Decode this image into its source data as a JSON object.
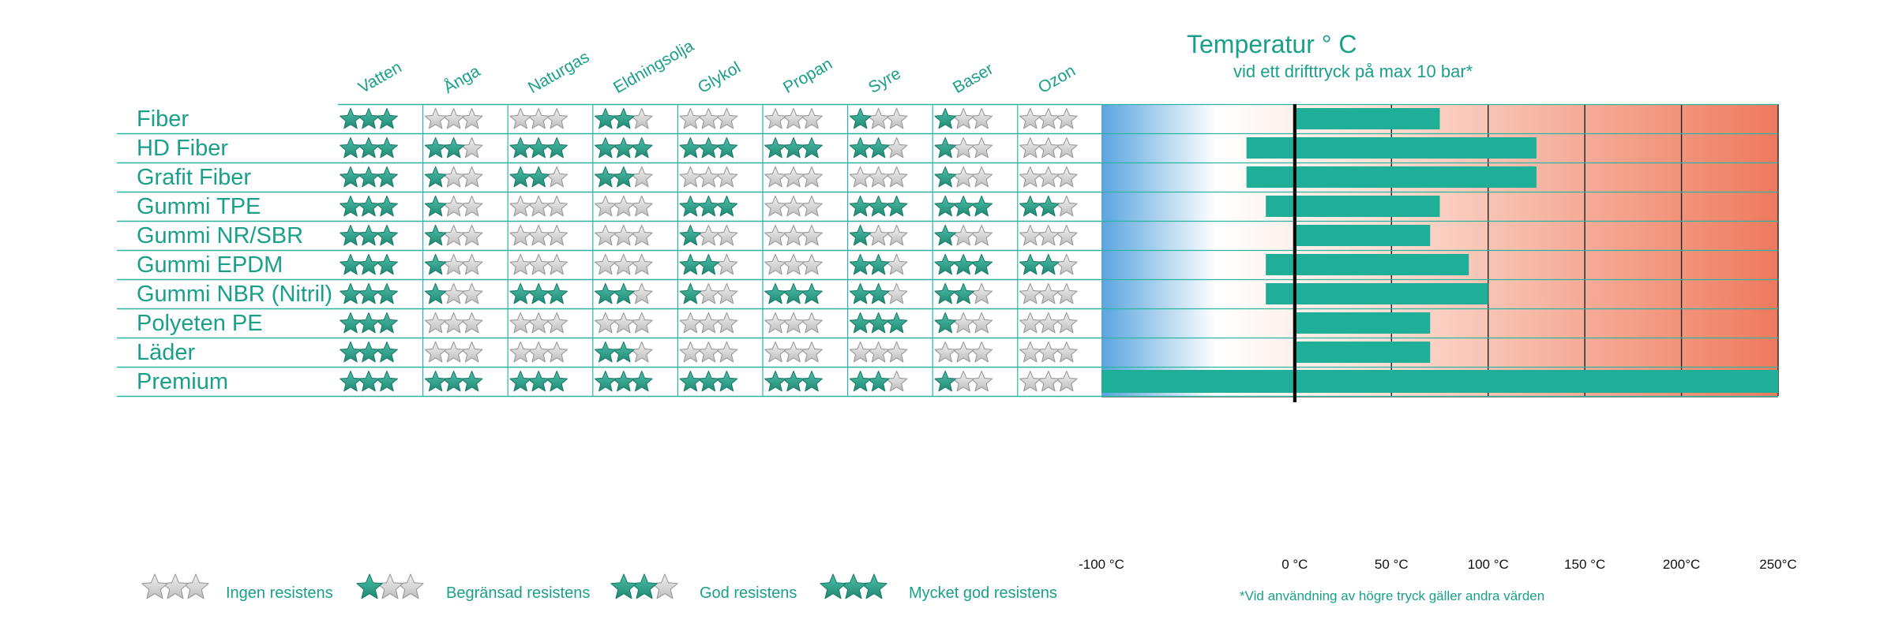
{
  "colors": {
    "teal": "#1fae97",
    "line": "#2bb5a0",
    "text": "#1aa08a",
    "star_filled": "#2a9e88",
    "star_empty": "#d6d6d6",
    "cold": "#5aa5df",
    "hot": "#ee7a5e"
  },
  "chemicals": [
    "Vatten",
    "Ånga",
    "Naturgas",
    "Eldningsolja",
    "Glykol",
    "Propan",
    "Syre",
    "Baser",
    "Ozon"
  ],
  "materials": [
    "Fiber",
    "HD Fiber",
    "Grafit Fiber",
    "Gummi TPE",
    "Gummi NR/SBR",
    "Gummi EPDM",
    "Gummi NBR (Nitril)",
    "Polyeten PE",
    "Läder",
    "Premium"
  ],
  "ratings": [
    [
      3,
      0,
      0,
      2,
      0,
      0,
      1,
      1,
      0
    ],
    [
      3,
      2,
      3,
      3,
      3,
      3,
      2,
      1,
      0
    ],
    [
      3,
      1,
      2,
      2,
      0,
      0,
      0,
      1,
      0
    ],
    [
      3,
      1,
      0,
      0,
      3,
      0,
      3,
      3,
      2
    ],
    [
      3,
      1,
      0,
      0,
      1,
      0,
      1,
      1,
      0
    ],
    [
      3,
      1,
      0,
      0,
      2,
      0,
      2,
      3,
      2
    ],
    [
      3,
      1,
      3,
      2,
      1,
      3,
      2,
      2,
      0
    ],
    [
      3,
      0,
      0,
      0,
      0,
      0,
      3,
      1,
      0
    ],
    [
      3,
      0,
      0,
      2,
      0,
      0,
      0,
      0,
      0
    ],
    [
      3,
      3,
      3,
      3,
      3,
      3,
      2,
      1,
      0
    ]
  ],
  "chart_data": {
    "type": "bar",
    "orientation": "horizontal",
    "title": "Temperatur  ° C",
    "subtitle": "vid ett drifttryck på max 10 bar*",
    "categories": [
      "Fiber",
      "HD Fiber",
      "Grafit Fiber",
      "Gummi TPE",
      "Gummi NR/SBR",
      "Gummi EPDM",
      "Gummi NBR (Nitril)",
      "Polyeten PE",
      "Läder",
      "Premium"
    ],
    "ranges": [
      [
        0,
        75
      ],
      [
        -25,
        125
      ],
      [
        -25,
        125
      ],
      [
        -15,
        75
      ],
      [
        0,
        70
      ],
      [
        -15,
        90
      ],
      [
        -15,
        100
      ],
      [
        0,
        70
      ],
      [
        0,
        70
      ],
      [
        -100,
        250
      ]
    ],
    "xlim": [
      -100,
      250
    ],
    "xticks": [
      -100,
      0,
      50,
      100,
      150,
      200,
      250
    ],
    "xtick_labels": [
      "-100 °C",
      "0 °C",
      "50 °C",
      "100 °C",
      "150 °C",
      "200°C",
      "250°C"
    ],
    "grid": true
  },
  "legend": [
    {
      "stars": 0,
      "label": "Ingen resistens"
    },
    {
      "stars": 1,
      "label": "Begränsad resistens"
    },
    {
      "stars": 2,
      "label": "God resistens"
    },
    {
      "stars": 3,
      "label": "Mycket god resistens"
    }
  ],
  "footnote": "*Vid användning av högre tryck gäller andra värden"
}
